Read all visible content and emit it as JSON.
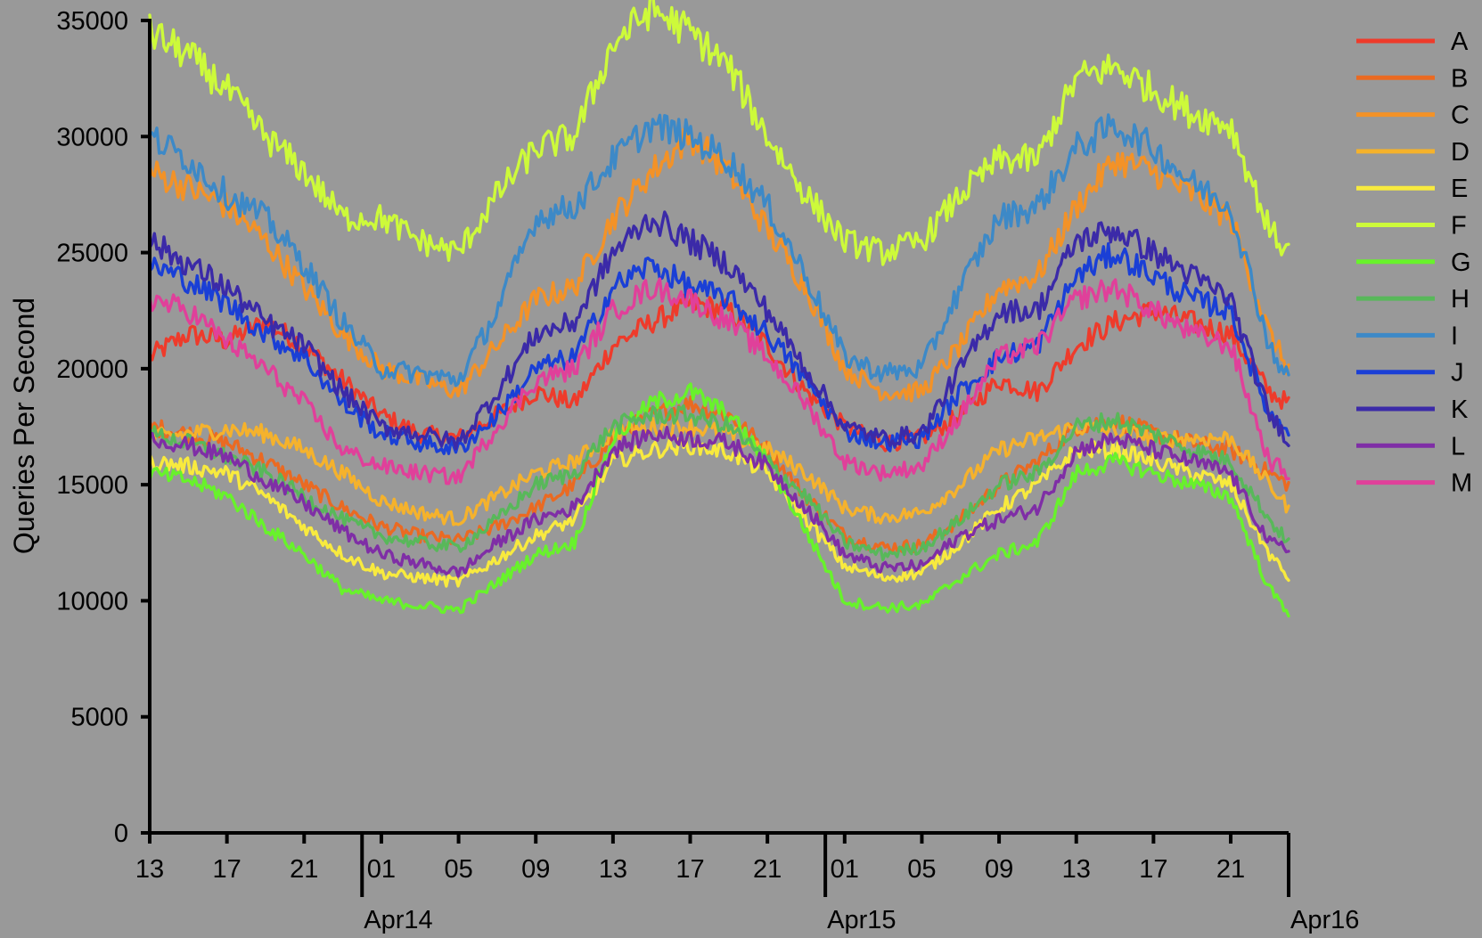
{
  "chart_data": {
    "type": "line",
    "title": "",
    "xlabel": "",
    "ylabel": "Queries Per Second",
    "ylim": [
      0,
      35000
    ],
    "xlim": [
      13,
      72
    ],
    "x_unit": "hours",
    "grid": false,
    "legend_position": "right",
    "background": "#999999",
    "yticks": [
      0,
      5000,
      10000,
      15000,
      20000,
      25000,
      30000,
      35000
    ],
    "xticks": [
      {
        "x": 13,
        "label": "13"
      },
      {
        "x": 17,
        "label": "17"
      },
      {
        "x": 21,
        "label": "21"
      },
      {
        "x": 25,
        "label": "01"
      },
      {
        "x": 29,
        "label": "05"
      },
      {
        "x": 33,
        "label": "09"
      },
      {
        "x": 37,
        "label": "13"
      },
      {
        "x": 41,
        "label": "17"
      },
      {
        "x": 45,
        "label": "21"
      },
      {
        "x": 49,
        "label": "01"
      },
      {
        "x": 53,
        "label": "05"
      },
      {
        "x": 57,
        "label": "09"
      },
      {
        "x": 61,
        "label": "13"
      },
      {
        "x": 65,
        "label": "17"
      },
      {
        "x": 69,
        "label": "21"
      }
    ],
    "day_markers": [
      {
        "x": 24,
        "label": "Apr14"
      },
      {
        "x": 48,
        "label": "Apr15"
      },
      {
        "x": 72,
        "label": "Apr16"
      }
    ],
    "x": [
      13,
      15,
      17,
      19,
      21,
      23,
      25,
      27,
      29,
      31,
      33,
      35,
      37,
      39,
      41,
      43,
      45,
      47,
      49,
      51,
      53,
      55,
      57,
      59,
      61,
      63,
      65,
      67,
      69,
      71,
      72
    ],
    "series": [
      {
        "name": "A",
        "color": "#ee3b2b",
        "values": [
          20500,
          21500,
          21200,
          22000,
          21000,
          19500,
          18000,
          17200,
          17000,
          18000,
          19000,
          18500,
          21000,
          22000,
          22800,
          22500,
          21000,
          19000,
          17500,
          16800,
          17000,
          18000,
          19500,
          19000,
          21000,
          22000,
          22500,
          22000,
          21500,
          19000,
          18500
        ]
      },
      {
        "name": "B",
        "color": "#ea6a22",
        "values": [
          17500,
          17200,
          16800,
          16000,
          15000,
          14000,
          13200,
          12800,
          12600,
          13200,
          14000,
          15000,
          17000,
          18000,
          18500,
          18000,
          16500,
          14500,
          12800,
          12300,
          12400,
          13500,
          15000,
          16000,
          17500,
          17800,
          17200,
          16800,
          16500,
          15500,
          15000
        ]
      },
      {
        "name": "C",
        "color": "#f39227",
        "values": [
          28500,
          27800,
          27000,
          25500,
          23500,
          21500,
          20000,
          19500,
          19000,
          21000,
          23000,
          23500,
          26500,
          28500,
          30000,
          28500,
          26000,
          23500,
          20000,
          19000,
          19000,
          21000,
          23500,
          24000,
          27000,
          29000,
          28500,
          27500,
          26500,
          21500,
          20000
        ]
      },
      {
        "name": "D",
        "color": "#f5b22c",
        "values": [
          17000,
          17200,
          17400,
          17200,
          16500,
          15500,
          14300,
          13800,
          13500,
          14500,
          15500,
          16000,
          17200,
          17500,
          17500,
          17200,
          16500,
          15500,
          14000,
          13600,
          13800,
          15000,
          16500,
          17000,
          17500,
          17300,
          17000,
          17000,
          17000,
          15000,
          14000
        ]
      },
      {
        "name": "E",
        "color": "#f8ea3e",
        "values": [
          16000,
          15800,
          15500,
          14500,
          13200,
          12000,
          11200,
          11000,
          10800,
          11800,
          12800,
          13500,
          16000,
          16500,
          16700,
          16400,
          15500,
          13500,
          11500,
          11000,
          11200,
          12500,
          14000,
          15000,
          16500,
          16500,
          16000,
          15500,
          15000,
          12000,
          11000
        ]
      },
      {
        "name": "F",
        "color": "#cdfa3a",
        "values": [
          34500,
          33500,
          32000,
          30000,
          28500,
          26500,
          26500,
          25500,
          25000,
          27500,
          29500,
          30000,
          34000,
          35500,
          34500,
          33000,
          30000,
          27500,
          25500,
          25000,
          25500,
          27500,
          29000,
          29000,
          32500,
          33000,
          32000,
          31000,
          30500,
          26000,
          25000
        ]
      },
      {
        "name": "G",
        "color": "#68f22b",
        "values": [
          15500,
          15200,
          14500,
          13200,
          12000,
          10500,
          10000,
          9800,
          9600,
          10800,
          12000,
          12500,
          17000,
          18500,
          19000,
          18000,
          16000,
          13000,
          10000,
          9700,
          9800,
          11000,
          12000,
          12500,
          15500,
          16000,
          15500,
          15000,
          14500,
          10500,
          9500
        ]
      },
      {
        "name": "H",
        "color": "#58b85a",
        "values": [
          17200,
          16800,
          16200,
          15500,
          14500,
          13500,
          12800,
          12500,
          12300,
          13500,
          15000,
          15500,
          17500,
          18000,
          18000,
          17500,
          16000,
          14500,
          12500,
          12000,
          12300,
          13500,
          15000,
          15500,
          17500,
          17800,
          17200,
          16500,
          16000,
          13500,
          12500
        ]
      },
      {
        "name": "I",
        "color": "#3d89c7",
        "values": [
          30000,
          29000,
          27500,
          26500,
          24500,
          22000,
          20000,
          19800,
          19500,
          22500,
          26500,
          27000,
          29000,
          30500,
          30000,
          29000,
          27000,
          24000,
          20500,
          19800,
          20000,
          23500,
          26500,
          27000,
          29500,
          30500,
          29500,
          28000,
          27000,
          21000,
          19500
        ]
      },
      {
        "name": "J",
        "color": "#1a3fd6",
        "values": [
          24500,
          23800,
          22800,
          21500,
          20500,
          18500,
          17200,
          16800,
          16500,
          18000,
          20000,
          20500,
          23500,
          24500,
          23500,
          23000,
          21500,
          19500,
          17300,
          16800,
          17000,
          19000,
          20500,
          21000,
          24000,
          25000,
          24000,
          23000,
          22500,
          18000,
          17500
        ]
      },
      {
        "name": "K",
        "color": "#3b2aa8",
        "values": [
          25500,
          24500,
          23500,
          22000,
          21000,
          19000,
          17500,
          17200,
          16800,
          19000,
          21500,
          22000,
          25000,
          26500,
          25500,
          24500,
          22500,
          20000,
          17500,
          17000,
          17200,
          20000,
          22500,
          22500,
          25500,
          26000,
          25000,
          24000,
          23000,
          18000,
          17000
        ]
      },
      {
        "name": "L",
        "color": "#7f2ea6",
        "values": [
          17000,
          16700,
          16200,
          15200,
          14200,
          13000,
          12000,
          11600,
          11200,
          12500,
          13500,
          14000,
          16500,
          17200,
          17000,
          16800,
          15800,
          14000,
          12000,
          11400,
          11500,
          12800,
          13500,
          14000,
          16500,
          17000,
          16500,
          16000,
          15500,
          12500,
          12200
        ]
      },
      {
        "name": "M",
        "color": "#e0409a",
        "values": [
          23000,
          22500,
          21200,
          20000,
          18500,
          16500,
          15800,
          15500,
          15300,
          17500,
          19500,
          20000,
          22500,
          23500,
          23000,
          22000,
          20500,
          18500,
          16000,
          15500,
          15800,
          18000,
          20500,
          21000,
          23000,
          23500,
          22500,
          21500,
          21000,
          16000,
          15500
        ]
      }
    ]
  }
}
